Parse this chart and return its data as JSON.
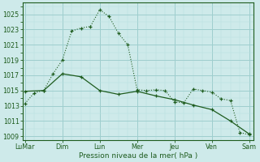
{
  "title": "Pression niveau de la mer( hPa )",
  "bg_color": "#ceeaea",
  "grid_major_color": "#9ecece",
  "grid_minor_color": "#b8dfdf",
  "line_color": "#1e5c1e",
  "ylim": [
    1008.5,
    1026.5
  ],
  "yticks": [
    1009,
    1011,
    1013,
    1015,
    1017,
    1019,
    1021,
    1023,
    1025
  ],
  "x_labels": [
    "LuMar",
    "Dim",
    "Lun",
    "Mer",
    "Jeu",
    "Ven",
    "Sam"
  ],
  "x_positions": [
    0,
    8,
    16,
    24,
    32,
    40,
    48
  ],
  "series1_x": [
    0,
    2,
    4,
    6,
    8,
    10,
    12,
    14,
    16,
    18,
    20,
    22,
    24,
    26,
    28,
    30,
    32,
    34,
    36,
    38,
    40,
    42,
    44,
    46,
    48
  ],
  "series1_y": [
    1013.3,
    1014.7,
    1015.0,
    1017.2,
    1019.0,
    1022.8,
    1023.2,
    1023.4,
    1025.6,
    1024.7,
    1022.5,
    1021.0,
    1015.1,
    1015.0,
    1015.1,
    1015.0,
    1013.5,
    1013.4,
    1015.2,
    1015.0,
    1014.8,
    1013.9,
    1013.7,
    1009.5,
    1009.2
  ],
  "series2_x": [
    0,
    4,
    8,
    12,
    16,
    20,
    24,
    28,
    32,
    36,
    40,
    44,
    48
  ],
  "series2_y": [
    1014.9,
    1015.0,
    1017.2,
    1016.8,
    1015.0,
    1014.5,
    1014.9,
    1014.3,
    1013.8,
    1013.1,
    1012.5,
    1011.0,
    1009.3
  ]
}
